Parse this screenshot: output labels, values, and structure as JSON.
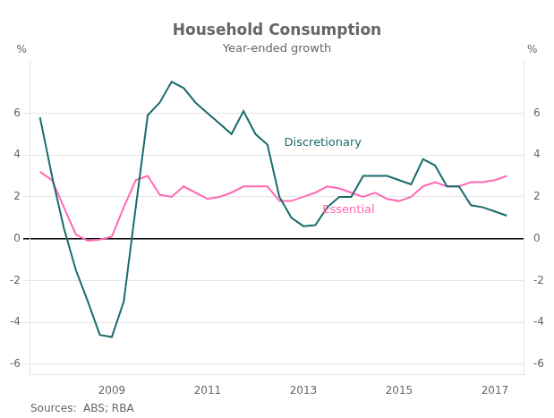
{
  "chart_data": {
    "type": "line",
    "title": "Household Consumption",
    "subtitle": "Year-ended growth",
    "ylabel": "%",
    "y2label": "%",
    "source": "Sources:  ABS; RBA",
    "x": [
      2007.5,
      2007.75,
      2008.0,
      2008.25,
      2008.5,
      2008.75,
      2009.0,
      2009.25,
      2009.5,
      2009.75,
      2010.0,
      2010.25,
      2010.5,
      2010.75,
      2011.0,
      2011.25,
      2011.5,
      2011.75,
      2012.0,
      2012.25,
      2012.5,
      2012.75,
      2013.0,
      2013.25,
      2013.5,
      2013.75,
      2014.0,
      2014.25,
      2014.5,
      2014.75,
      2015.0,
      2015.25,
      2015.5,
      2015.75,
      2016.0,
      2016.25,
      2016.5,
      2016.75,
      2017.0,
      2017.25
    ],
    "series": [
      {
        "name": "Discretionary",
        "color": "#1a6b6b",
        "values": [
          5.8,
          3.0,
          0.5,
          -1.5,
          -3.0,
          -4.6,
          -4.7,
          -3.0,
          1.5,
          5.9,
          6.5,
          7.5,
          7.2,
          6.5,
          6.0,
          5.5,
          5.0,
          6.1,
          5.0,
          4.5,
          2.0,
          1.0,
          0.6,
          0.65,
          1.5,
          2.0,
          2.0,
          3.0,
          3.0,
          3.0,
          2.8,
          2.6,
          3.8,
          3.5,
          2.5,
          2.5,
          1.6,
          1.5,
          1.3,
          1.1
        ]
      },
      {
        "name": "Essential",
        "color": "#ff69b4",
        "values": [
          3.2,
          2.8,
          1.5,
          0.2,
          -0.1,
          -0.05,
          0.1,
          1.5,
          2.8,
          3.0,
          2.1,
          2.0,
          2.5,
          2.2,
          1.9,
          2.0,
          2.2,
          2.5,
          2.5,
          2.5,
          1.8,
          1.8,
          2.0,
          2.2,
          2.5,
          2.4,
          2.2,
          2.0,
          2.2,
          1.9,
          1.8,
          2.0,
          2.5,
          2.7,
          2.5,
          2.5,
          2.7,
          2.7,
          2.8,
          3.0
        ]
      }
    ],
    "annotations": [
      {
        "text": "Discretionary",
        "x": 2012.6,
        "y": 4.3,
        "color": "#1a6b6b"
      },
      {
        "text": "Essential",
        "x": 2013.4,
        "y": 1.1,
        "color": "#ff69b4"
      }
    ],
    "xlim": [
      2007.3,
      2017.6
    ],
    "xticks": [
      2009,
      2011,
      2013,
      2015,
      2017
    ],
    "ylim": [
      -6.5,
      8.5
    ],
    "yticks": [
      -6,
      -4,
      -2,
      0,
      2,
      4,
      6
    ],
    "y2lim": [
      -6.5,
      8.5
    ],
    "y2ticks": [
      -6,
      -4,
      -2,
      0,
      2,
      4,
      6
    ],
    "grid": "y"
  }
}
